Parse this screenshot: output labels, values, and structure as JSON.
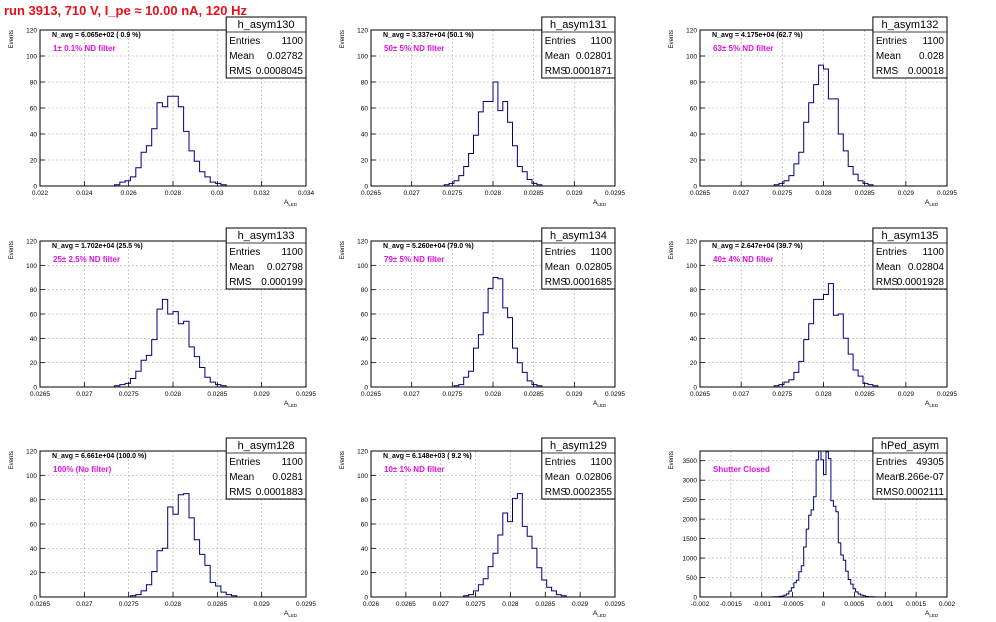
{
  "page_title": "run 3913,   710 V, I_pe ≈ 10.00 nA, 120 Hz",
  "chart_data": [
    {
      "type": "histogram",
      "name": "h_asym130",
      "stats": {
        "Entries": "1100",
        "Mean": "0.02782",
        "RMS": "0.0008045"
      },
      "navg": "N_avg = 6.065e+02 ( 0.9 %)",
      "filter": "1± 0.1% ND filter",
      "ylabel": "Events",
      "xlabel": "A_{LED}",
      "xlim": [
        0.022,
        0.034
      ],
      "ylim": [
        0,
        120
      ],
      "xticks": [
        "0.022",
        "0.024",
        "0.026",
        "0.028",
        "0.03",
        "0.032",
        "0.034"
      ],
      "yticks": [
        "0",
        "20",
        "40",
        "60",
        "80",
        "100",
        "120"
      ],
      "mean": 0.02782,
      "rms": 0.0008045,
      "peak": 66,
      "bins": 50,
      "seed": 11
    },
    {
      "type": "histogram",
      "name": "h_asym131",
      "stats": {
        "Entries": "1100",
        "Mean": "0.02801",
        "RMS": "0.0001871"
      },
      "navg": "N_avg = 3.337e+04 (50.1 %)",
      "filter": "50± 5% ND filter",
      "ylabel": "Events",
      "xlabel": "A_{LED}",
      "xlim": [
        0.0265,
        0.0295
      ],
      "ylim": [
        0,
        120
      ],
      "xticks": [
        "0.0265",
        "0.027",
        "0.0275",
        "0.028",
        "0.0285",
        "0.029",
        "0.0295"
      ],
      "yticks": [
        "0",
        "20",
        "40",
        "60",
        "80",
        "100",
        "120"
      ],
      "mean": 0.02801,
      "rms": 0.0001871,
      "peak": 77,
      "bins": 50,
      "seed": 23
    },
    {
      "type": "histogram",
      "name": "h_asym132",
      "stats": {
        "Entries": "1100",
        "Mean": "0.028",
        "RMS": "0.00018"
      },
      "navg": "N_avg = 4.175e+04 (62.7 %)",
      "filter": "63± 5% ND filter",
      "ylabel": "Events",
      "xlabel": "A_{LED}",
      "xlim": [
        0.0265,
        0.0295
      ],
      "ylim": [
        0,
        120
      ],
      "xticks": [
        "0.0265",
        "0.027",
        "0.0275",
        "0.028",
        "0.0285",
        "0.029",
        "0.0295"
      ],
      "yticks": [
        "0",
        "20",
        "40",
        "60",
        "80",
        "100",
        "120"
      ],
      "mean": 0.028,
      "rms": 0.00018,
      "peak": 83,
      "bins": 50,
      "seed": 37
    },
    {
      "type": "histogram",
      "name": "h_asym133",
      "stats": {
        "Entries": "1100",
        "Mean": "0.02798",
        "RMS": "0.000199"
      },
      "navg": "N_avg = 1.702e+04 (25.5 %)",
      "filter": "25± 2.5% ND filter",
      "ylabel": "Events",
      "xlabel": "A_{LED}",
      "xlim": [
        0.0265,
        0.0295
      ],
      "ylim": [
        0,
        120
      ],
      "xticks": [
        "0.0265",
        "0.027",
        "0.0275",
        "0.028",
        "0.0285",
        "0.029",
        "0.0295"
      ],
      "yticks": [
        "0",
        "20",
        "40",
        "60",
        "80",
        "100",
        "120"
      ],
      "mean": 0.02798,
      "rms": 0.000199,
      "peak": 69,
      "bins": 50,
      "seed": 41
    },
    {
      "type": "histogram",
      "name": "h_asym134",
      "stats": {
        "Entries": "1100",
        "Mean": "0.02805",
        "RMS": "0.0001685"
      },
      "navg": "N_avg = 5.260e+04 (79.0 %)",
      "filter": "79± 5% ND filter",
      "ylabel": "Events",
      "xlabel": "A_{LED}",
      "xlim": [
        0.0265,
        0.0295
      ],
      "ylim": [
        0,
        120
      ],
      "xticks": [
        "0.0265",
        "0.027",
        "0.0275",
        "0.028",
        "0.0285",
        "0.029",
        "0.0295"
      ],
      "yticks": [
        "0",
        "20",
        "40",
        "60",
        "80",
        "100",
        "120"
      ],
      "mean": 0.02805,
      "rms": 0.0001685,
      "peak": 89,
      "bins": 50,
      "seed": 53
    },
    {
      "type": "histogram",
      "name": "h_asym135",
      "stats": {
        "Entries": "1100",
        "Mean": "0.02804",
        "RMS": "0.0001928"
      },
      "navg": "N_avg = 2.647e+04 (39.7 %)",
      "filter": "40± 4% ND filter",
      "ylabel": "Events",
      "xlabel": "A_{LED}",
      "xlim": [
        0.0265,
        0.0295
      ],
      "ylim": [
        0,
        120
      ],
      "xticks": [
        "0.0265",
        "0.027",
        "0.0275",
        "0.028",
        "0.0285",
        "0.029",
        "0.0295"
      ],
      "yticks": [
        "0",
        "20",
        "40",
        "60",
        "80",
        "100",
        "120"
      ],
      "mean": 0.02804,
      "rms": 0.0001928,
      "peak": 82,
      "bins": 50,
      "seed": 67
    },
    {
      "type": "histogram",
      "name": "h_asym128",
      "stats": {
        "Entries": "1100",
        "Mean": "0.0281",
        "RMS": "0.0001883"
      },
      "navg": "N_avg = 6.661e+04 (100.0 %)",
      "filter": "100% (No filter)",
      "ylabel": "Events",
      "xlabel": "A_{LED}",
      "xlim": [
        0.0265,
        0.0295
      ],
      "ylim": [
        0,
        120
      ],
      "xticks": [
        "0.0265",
        "0.027",
        "0.0275",
        "0.028",
        "0.0285",
        "0.029",
        "0.0295"
      ],
      "yticks": [
        "0",
        "20",
        "40",
        "60",
        "80",
        "100",
        "120"
      ],
      "mean": 0.0281,
      "rms": 0.0001883,
      "peak": 80,
      "bins": 50,
      "seed": 71
    },
    {
      "type": "histogram",
      "name": "h_asym129",
      "stats": {
        "Entries": "1100",
        "Mean": "0.02806",
        "RMS": "0.0002355"
      },
      "navg": "N_avg = 6.148e+03 ( 9.2 %)",
      "filter": "10± 1% ND filter",
      "ylabel": "Events",
      "xlabel": "A_{LED}",
      "xlim": [
        0.026,
        0.0295
      ],
      "ylim": [
        0,
        120
      ],
      "xticks": [
        "0.026",
        "0.0265",
        "0.027",
        "0.0275",
        "0.028",
        "0.0285",
        "0.029",
        "0.0295"
      ],
      "yticks": [
        "0",
        "20",
        "40",
        "60",
        "80",
        "100",
        "120"
      ],
      "mean": 0.02806,
      "rms": 0.0002355,
      "peak": 77,
      "bins": 50,
      "seed": 83
    },
    {
      "type": "histogram",
      "name": "hPed_asym",
      "stats": {
        "Entries": "49305",
        "Mean": "8.266e-07",
        "RMS": "0.0002111"
      },
      "navg": "",
      "filter": "Shutter Closed",
      "ylabel": "Events",
      "xlabel": "A_{LED}",
      "xlim": [
        -0.002,
        0.002
      ],
      "ylim": [
        0,
        3750
      ],
      "xticks": [
        "-0.002",
        "-0.0015",
        "-0.001",
        "-0.0005",
        "0",
        "0.0005",
        "0.001",
        "0.0015",
        "0.002"
      ],
      "yticks": [
        "0",
        "500",
        "1000",
        "1500",
        "2000",
        "2500",
        "3000",
        "3500"
      ],
      "mean": 8.27e-07,
      "rms": 0.0002111,
      "peak": 3560,
      "bins": 100,
      "seed": 97
    }
  ],
  "colors": {
    "title": "#e8101a",
    "filter": "#e012e0",
    "hist": "#00007a",
    "grid": "#aaaaaa"
  }
}
